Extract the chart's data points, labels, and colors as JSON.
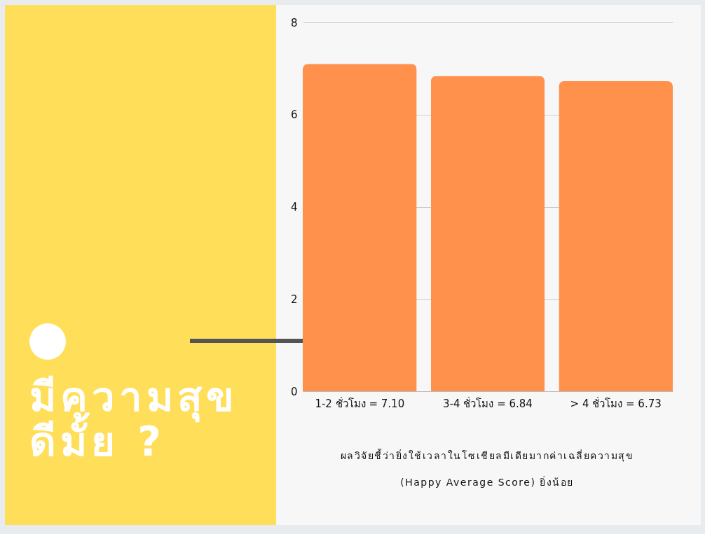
{
  "chart_data": {
    "type": "bar",
    "title": "มีความสุข ดีมั้ย ?",
    "categories": [
      "1-2 ชั่วโมง = 7.10",
      "3-4 ชั่วโมง = 6.84",
      "> 4 ชั่วโมง = 6.73"
    ],
    "values": [
      7.1,
      6.84,
      6.73
    ],
    "color": "#ff914d",
    "ylim": [
      0,
      8
    ],
    "yticks": [
      0,
      2,
      4,
      6,
      8
    ],
    "grid": "y",
    "annotations": [
      "ผลวิจัยชี้ว่ายิ่งใช้เวลาในโซเชียลมีเดียมากค่าเฉลี่ยความสุข (Happy Average Score)  ยิ่งน้อย"
    ]
  }
}
